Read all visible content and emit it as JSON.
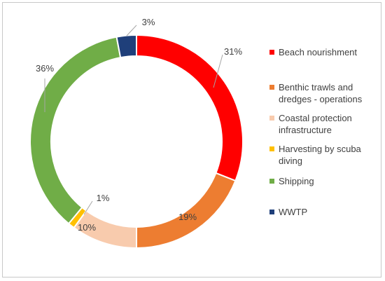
{
  "chart_data": {
    "type": "pie",
    "variant": "doughnut",
    "legend_position": "right",
    "slices": [
      {
        "name": "Beach nourishment",
        "value": 31,
        "label": "31%",
        "color": "#ff0000"
      },
      {
        "name": "Benthic trawls and dredges - operations",
        "value": 19,
        "label": "19%",
        "color": "#ed7d31"
      },
      {
        "name": "Coastal protection infrastructure",
        "value": 10,
        "label": "10%",
        "color": "#f8cbad"
      },
      {
        "name": "Harvesting by scuba diving",
        "value": 1,
        "label": "1%",
        "color": "#ffc000"
      },
      {
        "name": "Shipping",
        "value": 36,
        "label": "36%",
        "color": "#70ad47"
      },
      {
        "name": "WWTP",
        "value": 3,
        "label": "3%",
        "color": "#1f3f7a"
      }
    ]
  },
  "legend": {
    "items": [
      {
        "label": "Beach nourishment",
        "color": "#ff0000"
      },
      {
        "label": "Benthic trawls and dredges - operations",
        "color": "#ed7d31"
      },
      {
        "label": "Coastal protection infrastructure",
        "color": "#f8cbad"
      },
      {
        "label": "Harvesting by scuba diving",
        "color": "#ffc000"
      },
      {
        "label": "Shipping",
        "color": "#70ad47"
      },
      {
        "label": "WWTP",
        "color": "#1f3f7a"
      }
    ]
  }
}
